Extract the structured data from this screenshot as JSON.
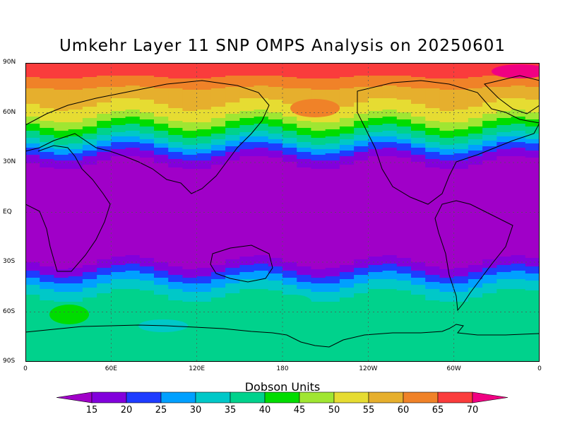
{
  "chart_data": {
    "type": "heatmap",
    "title": "Umkehr Layer 11 SNP OMPS Analysis on 20250601",
    "colorbar_title": "Dobson Units",
    "lat_ticks": [
      "90N",
      "60N",
      "30N",
      "EQ",
      "30S",
      "60S",
      "90S"
    ],
    "lon_ticks": [
      "0",
      "60E",
      "120E",
      "180",
      "120W",
      "60W",
      "0"
    ],
    "lat_range": [
      -90,
      90
    ],
    "lon_range": [
      0,
      360
    ],
    "levels": [
      15,
      20,
      25,
      30,
      35,
      40,
      45,
      50,
      55,
      60,
      65,
      70
    ],
    "level_labels": [
      "15",
      "20",
      "25",
      "30",
      "35",
      "40",
      "45",
      "50",
      "55",
      "60",
      "65",
      "70"
    ],
    "colors": [
      "#a000c8",
      "#8200dc",
      "#1e3cff",
      "#00a0ff",
      "#00c8c8",
      "#00d28c",
      "#00dc00",
      "#a0e632",
      "#e6dc32",
      "#e6af2d",
      "#f08228",
      "#fa3c3c",
      "#f00082"
    ],
    "grid": true,
    "zonal_profile": {
      "lat": [
        90,
        85,
        80,
        75,
        70,
        65,
        60,
        55,
        50,
        45,
        40,
        35,
        30,
        25,
        0,
        -25,
        -30,
        -35,
        -40,
        -45,
        -50,
        -55,
        -60,
        -65,
        -70,
        -75,
        -80,
        -85,
        -90
      ],
      "value": [
        68,
        67,
        64,
        60,
        57,
        55,
        52,
        47,
        41,
        35,
        27,
        20,
        15,
        13,
        12,
        13,
        15,
        20,
        26,
        31,
        35,
        37,
        38,
        38,
        38,
        38,
        38,
        38,
        38
      ]
    }
  }
}
